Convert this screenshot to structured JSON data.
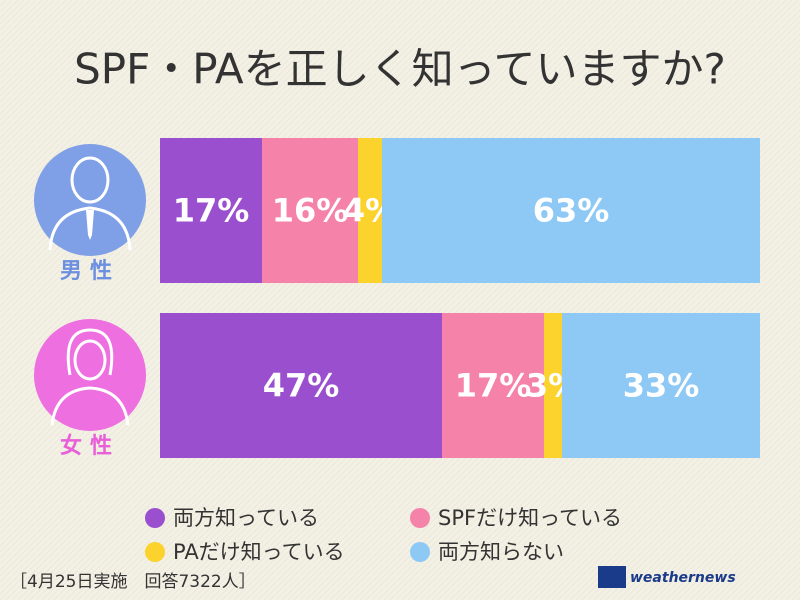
{
  "chart_data": {
    "type": "stacked-bar-horizontal",
    "title": "SPF・PAを正しく知っていますか?",
    "categories": [
      "男性",
      "女性"
    ],
    "series": [
      {
        "name": "両方知っている",
        "color": "#9a4fce",
        "values": [
          17,
          47
        ],
        "value_labels": [
          "17%",
          "47%"
        ]
      },
      {
        "name": "SPFだけ知っている",
        "color": "#f582a8",
        "values": [
          16,
          17
        ],
        "value_labels": [
          "16%",
          "17%"
        ]
      },
      {
        "name": "PAだけ知っている",
        "color": "#fcd22c",
        "values": [
          4,
          3
        ],
        "value_labels": [
          "4%",
          "3%"
        ]
      },
      {
        "name": "両方知らない",
        "color": "#8ec9f6",
        "values": [
          63,
          33
        ],
        "value_labels": [
          "63%",
          "33%"
        ]
      }
    ],
    "note": "［4月25日実施　回答7322人］",
    "logo": "weathernews"
  }
}
